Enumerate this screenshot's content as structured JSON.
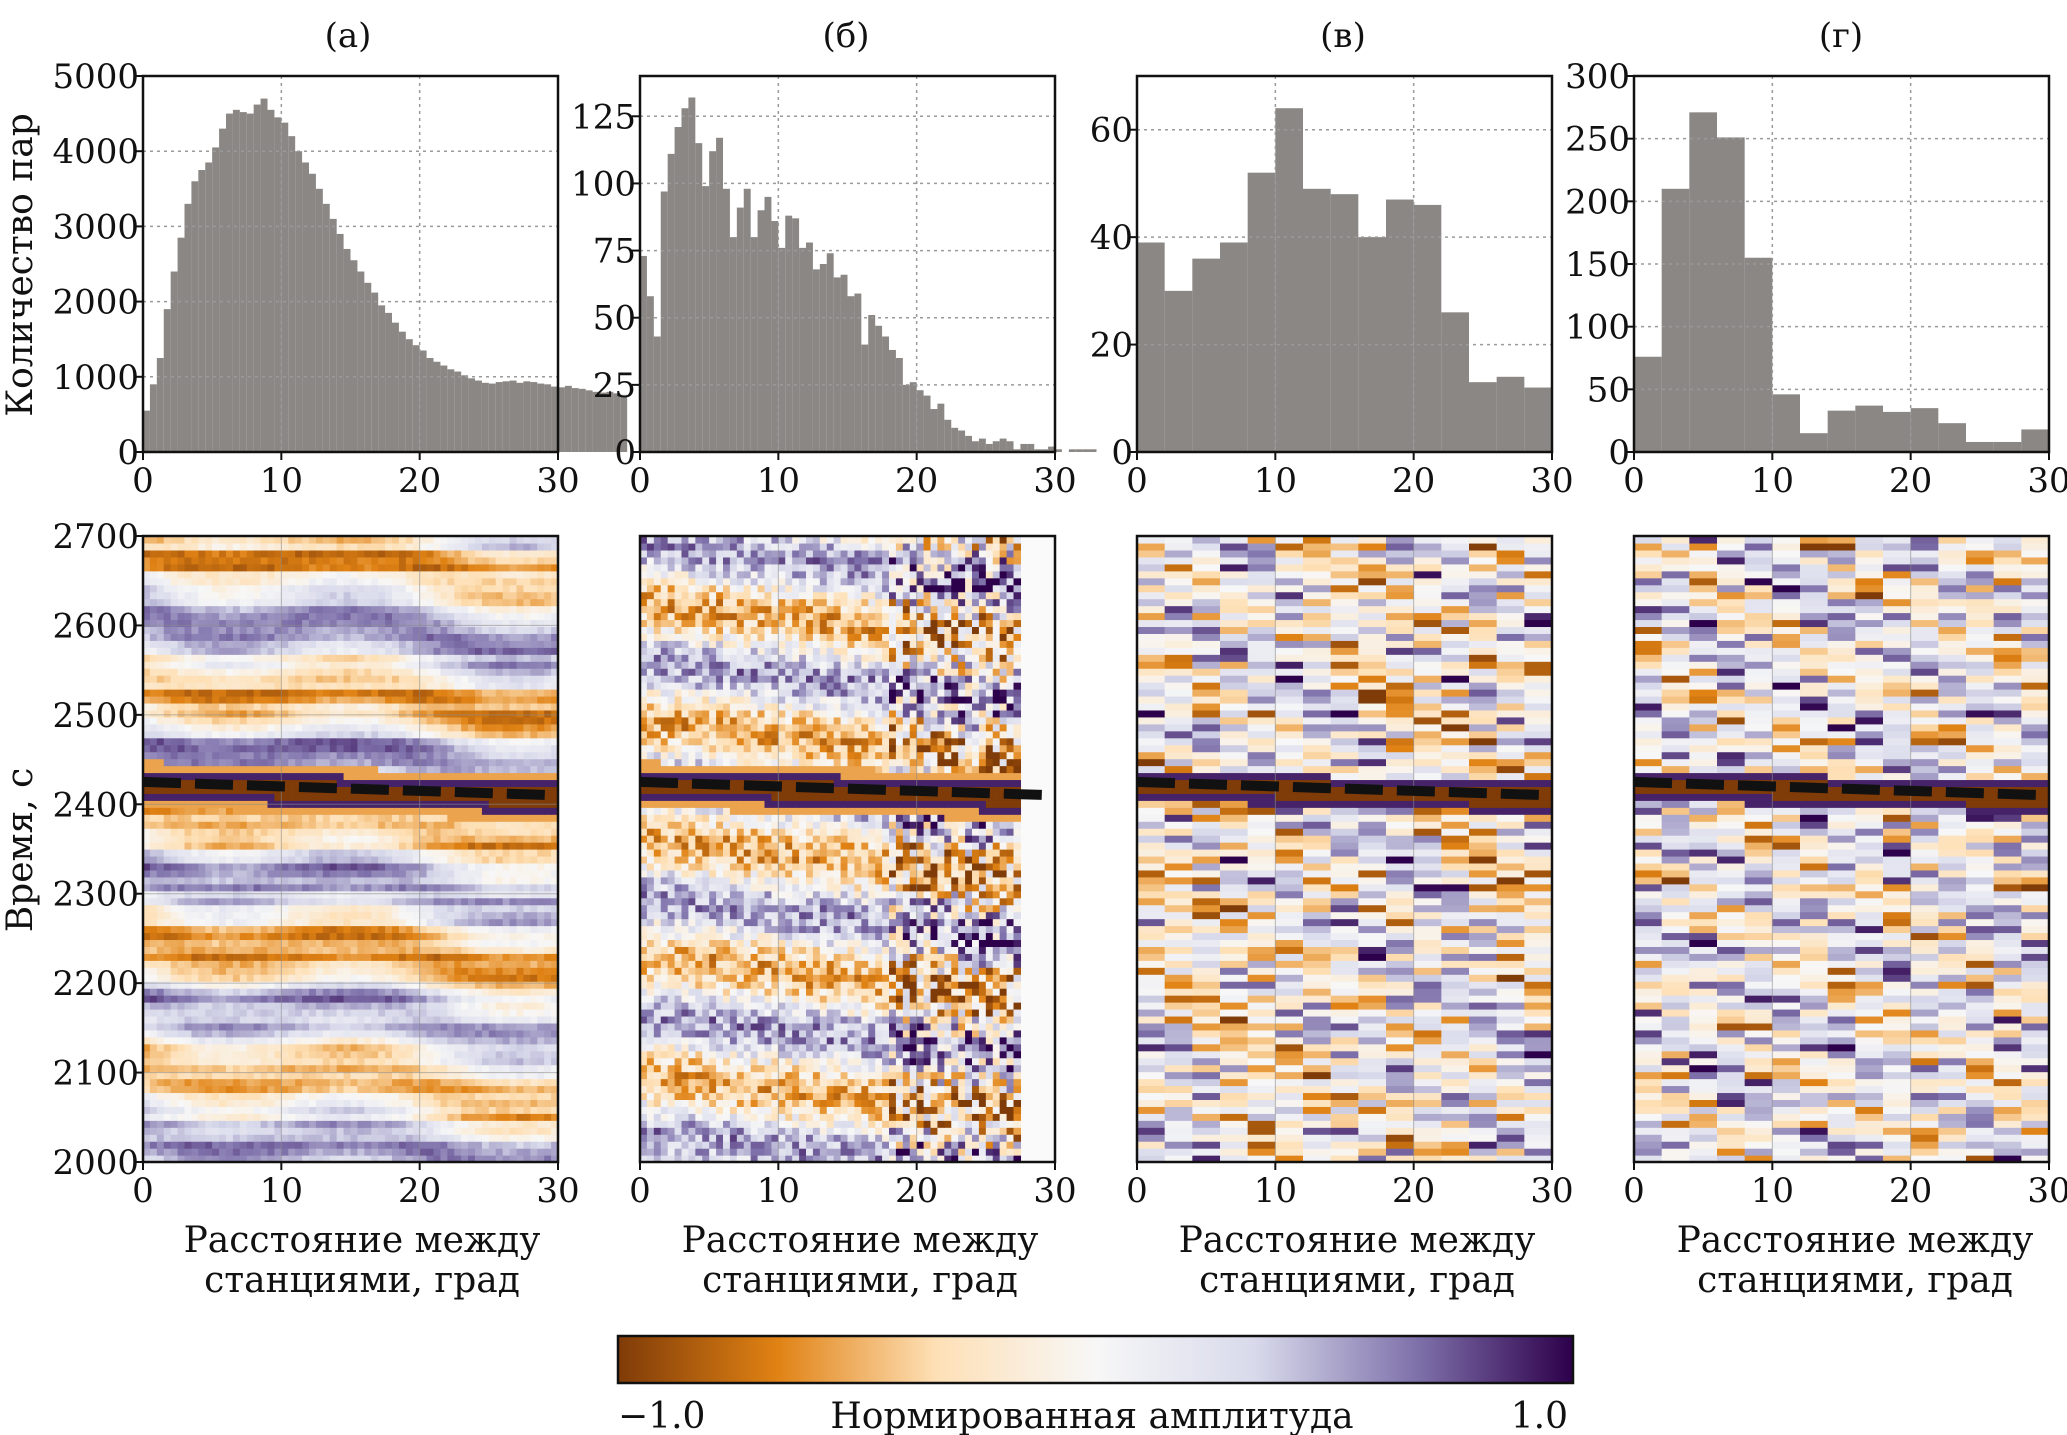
{
  "panel_labels": [
    "(а)",
    "(б)",
    "(в)",
    "(г)"
  ],
  "hist_ylabel": "Количество пар",
  "img_ylabel": "Время, с",
  "xlabel_line1": "Расстояние между",
  "xlabel_line2": "станциями, град",
  "colorbar": {
    "label": "Нормированная амплитуда",
    "min_label": "−1.0",
    "max_label": "1.0",
    "colors": [
      "#7f3b08",
      "#e08214",
      "#fee0b6",
      "#f7f7f7",
      "#d8daeb",
      "#8073ac",
      "#2d004b"
    ]
  },
  "colors": {
    "bar": "#8a8784",
    "grid": "#9a9a9a",
    "dashed_line": "#111111"
  },
  "chart_data": [
    {
      "type": "bar",
      "panel": "(а)",
      "xlim": [
        0,
        30
      ],
      "ylim": [
        0,
        5000
      ],
      "xticks": [
        "0",
        "10",
        "20",
        "30"
      ],
      "yticks": [
        "0",
        "1000",
        "2000",
        "3000",
        "4000",
        "5000"
      ],
      "ylabel": "Количество пар",
      "grid": true,
      "bin_width": 0.5,
      "values": [
        550,
        900,
        1250,
        1900,
        2400,
        2850,
        3300,
        3600,
        3750,
        3850,
        4050,
        4300,
        4500,
        4550,
        4520,
        4500,
        4620,
        4700,
        4550,
        4450,
        4380,
        4200,
        4000,
        3850,
        3700,
        3500,
        3300,
        3100,
        2900,
        2700,
        2550,
        2400,
        2250,
        2120,
        1950,
        1850,
        1720,
        1600,
        1500,
        1420,
        1350,
        1250,
        1200,
        1150,
        1100,
        1070,
        1020,
        980,
        950,
        920,
        910,
        930,
        940,
        950,
        920,
        940,
        930,
        910,
        900,
        870,
        860,
        880,
        850,
        840,
        820,
        800,
        790,
        800,
        780,
        760
      ]
    },
    {
      "type": "bar",
      "panel": "(б)",
      "xlim": [
        0,
        30
      ],
      "ylim": [
        0,
        140
      ],
      "xticks": [
        "0",
        "10",
        "20",
        "30"
      ],
      "yticks": [
        "0",
        "25",
        "50",
        "75",
        "100",
        "125"
      ],
      "grid": true,
      "bin_width": 0.5,
      "values": [
        73,
        58,
        43,
        97,
        111,
        121,
        128,
        132,
        115,
        99,
        112,
        117,
        98,
        80,
        91,
        98,
        80,
        90,
        95,
        86,
        76,
        88,
        87,
        76,
        78,
        68,
        70,
        74,
        65,
        66,
        58,
        59,
        40,
        51,
        47,
        43,
        38,
        35,
        25,
        26,
        23,
        21,
        16,
        18,
        12,
        9,
        8,
        6,
        4,
        5,
        3,
        4,
        5,
        4,
        1,
        3,
        3,
        1,
        1,
        2,
        1,
        0,
        1,
        1,
        1,
        1,
        0,
        0,
        0,
        0
      ]
    },
    {
      "type": "bar",
      "panel": "(в)",
      "xlim": [
        0,
        30
      ],
      "ylim": [
        0,
        70
      ],
      "xticks": [
        "0",
        "10",
        "20",
        "30"
      ],
      "yticks": [
        "0",
        "20",
        "40",
        "60"
      ],
      "grid": true,
      "bin_width": 2,
      "values": [
        39,
        30,
        36,
        39,
        52,
        64,
        49,
        48,
        40,
        47,
        46,
        26,
        13,
        14,
        12
      ]
    },
    {
      "type": "bar",
      "panel": "(г)",
      "xlim": [
        0,
        30
      ],
      "ylim": [
        0,
        300
      ],
      "xticks": [
        "0",
        "10",
        "20",
        "30"
      ],
      "yticks": [
        "0",
        "50",
        "100",
        "150",
        "200",
        "250",
        "300"
      ],
      "grid": true,
      "bin_width": 2,
      "values": [
        76,
        210,
        271,
        251,
        155,
        46,
        15,
        33,
        37,
        32,
        35,
        23,
        8,
        8,
        18
      ]
    },
    {
      "type": "heatmap",
      "panel": "(а)",
      "xlim": [
        0,
        30
      ],
      "ylim": [
        2000,
        2700
      ],
      "xticks": [
        "0",
        "10",
        "20",
        "30"
      ],
      "yticks": [
        "2000",
        "2100",
        "2200",
        "2300",
        "2400",
        "2500",
        "2600",
        "2700"
      ],
      "ylabel": "Время, с",
      "xlabel": "Расстояние между станциями, град",
      "color_range": [
        -1.0,
        1.0
      ],
      "dashed_line": {
        "x": [
          0,
          30
        ],
        "y": [
          2425,
          2410
        ]
      },
      "texture": "smooth",
      "data_xmax": 30,
      "columns": 60,
      "rows": 90
    },
    {
      "type": "heatmap",
      "panel": "(б)",
      "xlim": [
        0,
        30
      ],
      "ylim": [
        2000,
        2700
      ],
      "xticks": [
        "0",
        "10",
        "20",
        "30"
      ],
      "xlabel": "Расстояние между станциями, град",
      "color_range": [
        -1.0,
        1.0
      ],
      "dashed_line": {
        "x": [
          0,
          30
        ],
        "y": [
          2425,
          2410
        ]
      },
      "texture": "medium",
      "data_xmax": 27.5,
      "columns": 55,
      "rows": 90
    },
    {
      "type": "heatmap",
      "panel": "(в)",
      "xlim": [
        0,
        30
      ],
      "ylim": [
        2000,
        2700
      ],
      "xticks": [
        "0",
        "10",
        "20",
        "30"
      ],
      "xlabel": "Расстояние между станциями, град",
      "color_range": [
        -1.0,
        1.0
      ],
      "dashed_line": {
        "x": [
          0,
          30
        ],
        "y": [
          2425,
          2410
        ]
      },
      "texture": "blocky",
      "data_xmax": 30,
      "columns": 15,
      "rows": 90
    },
    {
      "type": "heatmap",
      "panel": "(г)",
      "xlim": [
        0,
        30
      ],
      "ylim": [
        2000,
        2700
      ],
      "xticks": [
        "0",
        "10",
        "20",
        "30"
      ],
      "xlabel": "Расстояние между станциями, град",
      "color_range": [
        -1.0,
        1.0
      ],
      "dashed_line": {
        "x": [
          0,
          30
        ],
        "y": [
          2425,
          2410
        ]
      },
      "texture": "blocky",
      "data_xmax": 30,
      "columns": 15,
      "rows": 90
    }
  ]
}
